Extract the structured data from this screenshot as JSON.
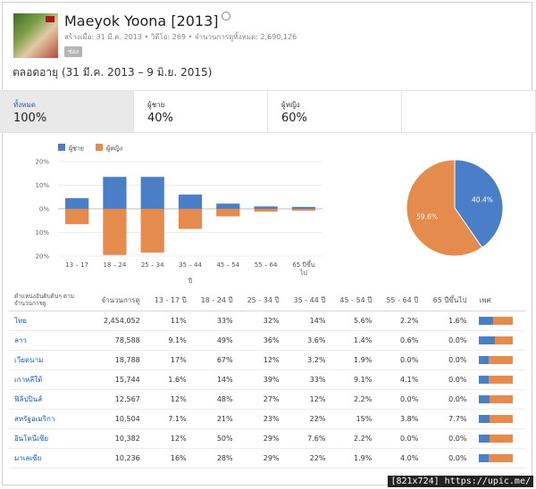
{
  "video": {
    "title": "Maeyok Yoona [2013]",
    "meta": "สร้างเมื่อ: 31 มี.ค. 2013 • วิดีโอ: 269 • จำนวนการดูทั้งหมด: 2,690,126",
    "chip": "ช่อง"
  },
  "date_range": "ตลอดอายุ (31 มี.ค. 2013 – 9 มิ.ย. 2015)",
  "tabs": [
    {
      "label": "ทั้งหมด",
      "value": "100%"
    },
    {
      "label": "ผู้ชาย",
      "value": "40%"
    },
    {
      "label": "ผู้หญิง",
      "value": "60%"
    }
  ],
  "colors": {
    "male": "#4a7fc8",
    "female": "#e48b4d"
  },
  "chart_data": [
    {
      "type": "bar",
      "legend": [
        "ผู้ชาย",
        "ผู้หญิง"
      ],
      "categories": [
        "13 – 17",
        "18 – 24",
        "25 – 34",
        "35 – 44",
        "45 – 54",
        "55 – 64",
        "65 ปีขึ้นไป"
      ],
      "series": [
        {
          "name": "ผู้ชาย",
          "values": [
            4.5,
            13.5,
            13.5,
            6,
            2.2,
            1,
            0.8
          ]
        },
        {
          "name": "ผู้หญิง",
          "values": [
            6.5,
            19.5,
            18.5,
            8.5,
            3.2,
            1.2,
            0.8
          ]
        }
      ],
      "y_ticks": [
        "20%",
        "10%",
        "0%",
        "10%",
        "20%"
      ],
      "ylim": [
        -20,
        20
      ],
      "xlabel": "ปี"
    },
    {
      "type": "pie",
      "slices": [
        {
          "name": "ผู้ชาย",
          "value": 40.4,
          "label": "40.4%"
        },
        {
          "name": "ผู้หญิง",
          "value": 59.6,
          "label": "59.6%"
        }
      ]
    }
  ],
  "table": {
    "headers": [
      "ตำแหน่งอันดับต้นๆ ตามจำนวนการดู",
      "จำนวนการดู",
      "13 - 17 ปี",
      "18 - 24 ปี",
      "25 - 34 ปี",
      "35 - 44 ปี",
      "45 - 54 ปี",
      "55 - 64 ปี",
      "65 ปีขึ้นไป",
      "เพศ"
    ],
    "rows": [
      {
        "country": "ไทย",
        "cells": [
          "2,454,052",
          "11%",
          "33%",
          "32%",
          "14%",
          "5.6%",
          "2.2%",
          "1.6%"
        ],
        "male_share": 0.42
      },
      {
        "country": "ลาว",
        "cells": [
          "78,588",
          "9.1%",
          "49%",
          "36%",
          "3.6%",
          "1.4%",
          "0.6%",
          "0.0%"
        ],
        "male_share": 0.45
      },
      {
        "country": "เวียดนาม",
        "cells": [
          "18,788",
          "17%",
          "67%",
          "12%",
          "3.2%",
          "1.9%",
          "0.0%",
          "0.0%"
        ],
        "male_share": 0.28
      },
      {
        "country": "เกาหลีใต้",
        "cells": [
          "15,744",
          "1.6%",
          "14%",
          "39%",
          "33%",
          "9.1%",
          "4.1%",
          "0.0%"
        ],
        "male_share": 0.28
      },
      {
        "country": "ฟิลิปปินส์",
        "cells": [
          "12,567",
          "12%",
          "48%",
          "27%",
          "12%",
          "2.2%",
          "0.0%",
          "0.0%"
        ],
        "male_share": 0.3
      },
      {
        "country": "สหรัฐอเมริกา",
        "cells": [
          "10,504",
          "7.1%",
          "21%",
          "23%",
          "22%",
          "15%",
          "3.8%",
          "7.7%"
        ],
        "male_share": 0.3
      },
      {
        "country": "อินโดนีเซีย",
        "cells": [
          "10,382",
          "12%",
          "50%",
          "29%",
          "7.6%",
          "2.2%",
          "0.0%",
          "0.0%"
        ],
        "male_share": 0.3
      },
      {
        "country": "มาเลเซีย",
        "cells": [
          "10,236",
          "16%",
          "28%",
          "29%",
          "22%",
          "1.9%",
          "4.0%",
          "0.0%"
        ],
        "male_share": 0.28
      }
    ]
  },
  "watermark": "[821x724] https://upic.me/"
}
